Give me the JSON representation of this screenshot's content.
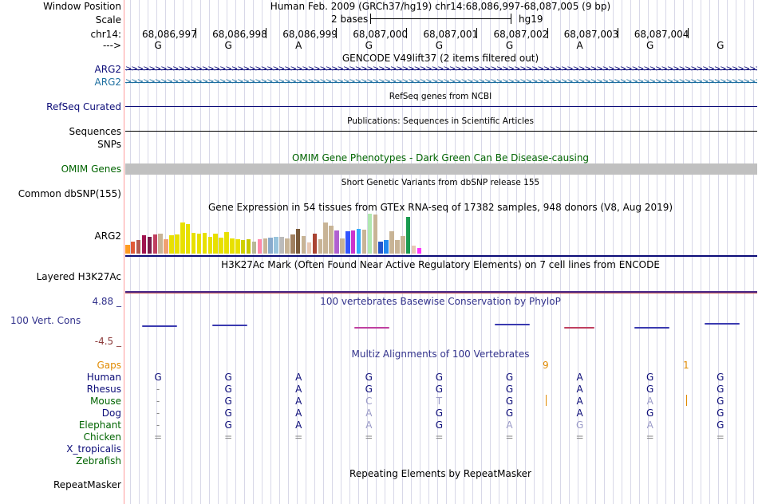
{
  "colors": {
    "label_default": "#000000",
    "gencode_blue": "#0c0c78",
    "gencode_teal": "#1e6fa0",
    "refseq": "#0c0c78",
    "omim_green": "#006400",
    "omim_bar": "#c0c0c0",
    "phylop": "#32328c",
    "phylop_low": "#8b3a3a",
    "gaps_orange": "#e08a00",
    "species_blue": "#0c0c78",
    "species_green": "#006400",
    "gridline": "#d8d8e8",
    "red_border": "#ff9c9c"
  },
  "header": {
    "window_position_label": "Window Position",
    "window_position_value": "Human Feb. 2009 (GRCh37/hg19)   chr14:68,086,997-68,087,005 (9 bp)",
    "scale_label": "Scale",
    "scale_text": "2 bases",
    "scale_assembly": "hg19",
    "chrom_label": "chr14:",
    "arrow_label": "--->",
    "positions": [
      "68,086,997",
      "68,086,998",
      "68,086,999",
      "68,087,000",
      "68,087,001",
      "68,087,002",
      "68,087,003",
      "68,087,004"
    ],
    "bases": [
      "G",
      "G",
      "A",
      "G",
      "G",
      "G",
      "A",
      "G",
      "G"
    ]
  },
  "tracks": {
    "gencode_title": "GENCODE V49lift37 (2 items filtered out)",
    "arg2_label_1": "ARG2",
    "arg2_label_2": "ARG2",
    "refseq_label": "RefSeq Curated",
    "refseq_title": "RefSeq genes from NCBI",
    "sequences_label": "Sequences",
    "sequences_title": "Publications: Sequences in Scientific Articles",
    "snps_label": "SNPs",
    "omim_title": "OMIM Gene Phenotypes - Dark Green Can Be Disease-causing",
    "omim_label": "OMIM Genes",
    "dbsnp_title": "Short Genetic Variants from dbSNP release 155",
    "dbsnp_label": "Common dbSNP(155)",
    "gtex_title": "Gene Expression in 54 tissues from GTEx RNA-seq of 17382 samples, 948 donors (V8, Aug 2019)",
    "gtex_label": "ARG2",
    "h3k27_title": "H3K27Ac Mark (Often Found Near Active Regulatory Elements) on 7 cell lines from ENCODE",
    "h3k27_label": "Layered H3K27Ac",
    "phylop_max": "4.88 _",
    "phylop_title": "100 vertebrates Basewise Conservation by PhyloP",
    "phylop_label": "100 Vert. Cons",
    "phylop_min": "-4.5 _",
    "multiz_title": "Multiz Alignments of 100 Vertebrates",
    "repeat_title": "Repeating Elements by RepeatMasker",
    "repeat_label": "RepeatMasker"
  },
  "gtex_values": [
    {
      "c": "#ff9b21",
      "v": 0.22
    },
    {
      "c": "#e05a38",
      "v": 0.3
    },
    {
      "c": "#b35a50",
      "v": 0.34
    },
    {
      "c": "#a0134f",
      "v": 0.46
    },
    {
      "c": "#7a1a4a",
      "v": 0.42
    },
    {
      "c": "#c04060",
      "v": 0.48
    },
    {
      "c": "#c8b496",
      "v": 0.5
    },
    {
      "c": "#f0a070",
      "v": 0.36
    },
    {
      "c": "#e8e000",
      "v": 0.46
    },
    {
      "c": "#e8e000",
      "v": 0.48
    },
    {
      "c": "#e8e000",
      "v": 0.78
    },
    {
      "c": "#e8e000",
      "v": 0.74
    },
    {
      "c": "#e8e000",
      "v": 0.52
    },
    {
      "c": "#e8e000",
      "v": 0.5
    },
    {
      "c": "#e8e000",
      "v": 0.52
    },
    {
      "c": "#e8e000",
      "v": 0.42
    },
    {
      "c": "#e8e000",
      "v": 0.5
    },
    {
      "c": "#e8e000",
      "v": 0.4
    },
    {
      "c": "#e8e000",
      "v": 0.54
    },
    {
      "c": "#e8e000",
      "v": 0.38
    },
    {
      "c": "#e8e000",
      "v": 0.36
    },
    {
      "c": "#d0d000",
      "v": 0.34
    },
    {
      "c": "#c8c800",
      "v": 0.36
    },
    {
      "c": "#b8b896",
      "v": 0.3
    },
    {
      "c": "#ff88aa",
      "v": 0.36
    },
    {
      "c": "#c8b496",
      "v": 0.38
    },
    {
      "c": "#88aacc",
      "v": 0.4
    },
    {
      "c": "#99c4dd",
      "v": 0.42
    },
    {
      "c": "#bbbbbb",
      "v": 0.42
    },
    {
      "c": "#c8b496",
      "v": 0.38
    },
    {
      "c": "#a08060",
      "v": 0.48
    },
    {
      "c": "#7a5a3a",
      "v": 0.62
    },
    {
      "c": "#c8b496",
      "v": 0.44
    },
    {
      "c": "#e8c8b4",
      "v": 0.28
    },
    {
      "c": "#aa4433",
      "v": 0.5
    },
    {
      "c": "#c8b496",
      "v": 0.36
    },
    {
      "c": "#c8b496",
      "v": 0.78
    },
    {
      "c": "#c8b496",
      "v": 0.7
    },
    {
      "c": "#b060d0",
      "v": 0.58
    },
    {
      "c": "#c8b496",
      "v": 0.38
    },
    {
      "c": "#3355ff",
      "v": 0.56
    },
    {
      "c": "#cc33cc",
      "v": 0.58
    },
    {
      "c": "#33aaff",
      "v": 0.62
    },
    {
      "c": "#c8b496",
      "v": 0.6
    },
    {
      "c": "#b0e8b0",
      "v": 1.0
    },
    {
      "c": "#c8b496",
      "v": 0.98
    },
    {
      "c": "#2255cc",
      "v": 0.3
    },
    {
      "c": "#2288ee",
      "v": 0.34
    },
    {
      "c": "#c8b496",
      "v": 0.56
    },
    {
      "c": "#c8b496",
      "v": 0.34
    },
    {
      "c": "#c8b496",
      "v": 0.44
    },
    {
      "c": "#1a9a50",
      "v": 0.92
    },
    {
      "c": "#e8c8b4",
      "v": 0.2
    },
    {
      "c": "#ff33ff",
      "v": 0.14
    }
  ],
  "multiz": {
    "gaps_label": "Gaps",
    "gap_values": [
      "9",
      "1"
    ],
    "species": [
      {
        "name": "Human",
        "color": "#0c0c78",
        "bases": [
          "G",
          "G",
          "A",
          "G",
          "G",
          "G",
          "A",
          "G",
          "G"
        ]
      },
      {
        "name": "Rhesus",
        "color": "#0c0c78",
        "bases": [
          "-",
          "G",
          "A",
          "G",
          "G",
          "G",
          "A",
          "G",
          "G"
        ]
      },
      {
        "name": "Mouse",
        "color": "#006400",
        "bases": [
          "-",
          "G",
          "A",
          "C",
          "T",
          "G",
          "A",
          "A",
          "G"
        ]
      },
      {
        "name": "Dog",
        "color": "#0c0c78",
        "bases": [
          "-",
          "G",
          "A",
          "A",
          "G",
          "G",
          "A",
          "G",
          "G"
        ]
      },
      {
        "name": "Elephant",
        "color": "#006400",
        "bases": [
          "-",
          "G",
          "A",
          "A",
          "G",
          "A",
          "G",
          "A",
          "G"
        ]
      },
      {
        "name": "Chicken",
        "color": "#006400",
        "bases": [
          "=",
          "=",
          "=",
          "=",
          "=",
          "=",
          "=",
          "=",
          "="
        ]
      },
      {
        "name": "X_tropicalis",
        "color": "#0c0c78",
        "bases": [
          "",
          "",
          "",
          "",
          "",
          "",
          "",
          "",
          ""
        ]
      },
      {
        "name": "Zebrafish",
        "color": "#006400",
        "bases": [
          "",
          "",
          "",
          "",
          "",
          "",
          "",
          "",
          ""
        ]
      }
    ]
  }
}
